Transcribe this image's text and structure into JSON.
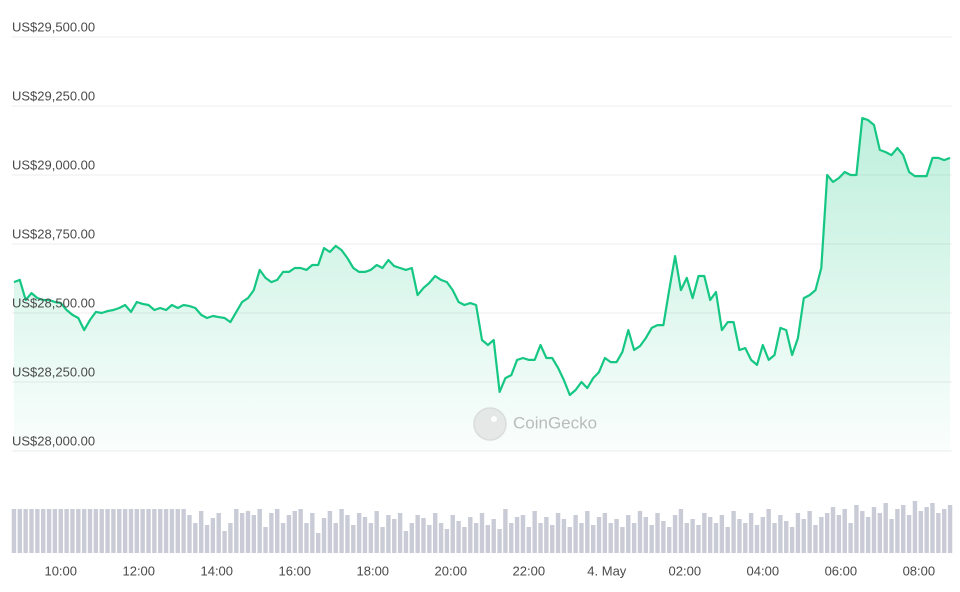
{
  "chart_data": {
    "type": "line",
    "watermark": "CoinGecko",
    "color": "#16c784",
    "grid": true,
    "xlim": [
      8.75,
      32.85
    ],
    "xticks": [
      {
        "value": 10,
        "label": "10:00"
      },
      {
        "value": 12,
        "label": "12:00"
      },
      {
        "value": 14,
        "label": "14:00"
      },
      {
        "value": 16,
        "label": "16:00"
      },
      {
        "value": 18,
        "label": "18:00"
      },
      {
        "value": 20,
        "label": "20:00"
      },
      {
        "value": 22,
        "label": "22:00"
      },
      {
        "value": 24,
        "label": "4. May"
      },
      {
        "value": 26,
        "label": "02:00"
      },
      {
        "value": 28,
        "label": "04:00"
      },
      {
        "value": 30,
        "label": "06:00"
      },
      {
        "value": 32,
        "label": "08:00"
      }
    ],
    "ylim": [
      28000,
      29500
    ],
    "yticks": [
      {
        "value": 28000,
        "label": "US$28,000.00"
      },
      {
        "value": 28250,
        "label": "US$28,250.00"
      },
      {
        "value": 28500,
        "label": "US$28,500.00"
      },
      {
        "value": 28750,
        "label": "US$28,750.00"
      },
      {
        "value": 29000,
        "label": "US$29,000.00"
      },
      {
        "value": 29250,
        "label": "US$29,250.00"
      },
      {
        "value": 29500,
        "label": "US$29,500.00"
      }
    ],
    "x": [
      8.8,
      8.95,
      9.1,
      9.25,
      9.4,
      9.55,
      9.7,
      9.85,
      10,
      10.15,
      10.3,
      10.45,
      10.6,
      10.75,
      10.9,
      11.05,
      11.2,
      11.35,
      11.5,
      11.65,
      11.8,
      11.95,
      12.1,
      12.25,
      12.4,
      12.55,
      12.7,
      12.85,
      13,
      13.15,
      13.3,
      13.45,
      13.6,
      13.75,
      13.9,
      14.05,
      14.2,
      14.35,
      14.5,
      14.65,
      14.8,
      14.95,
      15.1,
      15.25,
      15.4,
      15.55,
      15.7,
      15.85,
      16,
      16.15,
      16.3,
      16.45,
      16.6,
      16.75,
      16.9,
      17.05,
      17.2,
      17.35,
      17.5,
      17.65,
      17.8,
      17.95,
      18.1,
      18.25,
      18.4,
      18.55,
      18.7,
      18.85,
      19,
      19.15,
      19.3,
      19.45,
      19.6,
      19.75,
      19.9,
      20.05,
      20.2,
      20.35,
      20.5,
      20.65,
      20.8,
      20.95,
      21.1,
      21.25,
      21.4,
      21.55,
      21.7,
      21.85,
      22,
      22.15,
      22.3,
      22.45,
      22.6,
      22.75,
      22.9,
      23.05,
      23.2,
      23.35,
      23.5,
      23.65,
      23.8,
      23.95,
      24.1,
      24.25,
      24.4,
      24.55,
      24.7,
      24.85,
      25,
      25.15,
      25.3,
      25.45,
      25.6,
      25.75,
      25.9,
      26.05,
      26.2,
      26.35,
      26.5,
      26.65,
      26.8,
      26.95,
      27.1,
      27.25,
      27.4,
      27.55,
      27.7,
      27.85,
      28,
      28.15,
      28.3,
      28.45,
      28.6,
      28.75,
      28.9,
      29.05,
      29.2,
      29.35,
      29.5,
      29.65,
      29.8,
      29.95,
      30.1,
      30.25,
      30.4,
      30.55,
      30.7,
      30.85,
      31,
      31.15,
      31.3,
      31.45,
      31.6,
      31.75,
      31.9,
      32.05,
      32.2,
      32.35,
      32.5,
      32.65,
      32.8
    ],
    "values": [
      28612,
      28620,
      28547,
      28572,
      28554,
      28547,
      28547,
      28540,
      28536,
      28511,
      28493,
      28482,
      28438,
      28475,
      28504,
      28500,
      28507,
      28511,
      28518,
      28529,
      28504,
      28540,
      28533,
      28529,
      28511,
      28518,
      28511,
      28529,
      28518,
      28529,
      28525,
      28518,
      28493,
      28482,
      28489,
      28485,
      28482,
      28467,
      28504,
      28540,
      28554,
      28583,
      28656,
      28627,
      28612,
      28620,
      28649,
      28649,
      28663,
      28663,
      28656,
      28674,
      28674,
      28735,
      28721,
      28743,
      28728,
      28699,
      28663,
      28649,
      28649,
      28656,
      28674,
      28663,
      28692,
      28670,
      28663,
      28656,
      28663,
      28565,
      28591,
      28609,
      28634,
      28620,
      28612,
      28583,
      28540,
      28529,
      28536,
      28529,
      28402,
      28384,
      28402,
      28214,
      28264,
      28275,
      28330,
      28337,
      28330,
      28330,
      28384,
      28337,
      28337,
      28301,
      28257,
      28203,
      28221,
      28250,
      28228,
      28264,
      28286,
      28337,
      28322,
      28322,
      28359,
      28438,
      28366,
      28380,
      28409,
      28446,
      28456,
      28456,
      28583,
      28706,
      28583,
      28627,
      28554,
      28634,
      28634,
      28547,
      28576,
      28438,
      28467,
      28467,
      28366,
      28373,
      28330,
      28312,
      28384,
      28330,
      28348,
      28446,
      28438,
      28348,
      28409,
      28554,
      28565,
      28583,
      28663,
      29000,
      28975,
      28989,
      29011,
      29000,
      29000,
      29206,
      29199,
      29181,
      29091,
      29083,
      29072,
      29098,
      29072,
      29011,
      28996,
      28996,
      28996,
      29062,
      29062,
      29054,
      29062
    ],
    "volume_color": "#c9ccd6",
    "volume_lim": [
      0,
      50
    ],
    "volume": [
      44,
      44,
      44,
      44,
      44,
      44,
      44,
      44,
      44,
      44,
      44,
      44,
      44,
      44,
      44,
      44,
      44,
      44,
      44,
      44,
      44,
      44,
      44,
      44,
      44,
      44,
      44,
      44,
      44,
      44,
      38,
      30,
      42,
      28,
      35,
      40,
      22,
      30,
      44,
      40,
      42,
      38,
      44,
      26,
      40,
      44,
      30,
      38,
      42,
      44,
      30,
      40,
      20,
      35,
      42,
      30,
      44,
      38,
      28,
      40,
      36,
      30,
      42,
      26,
      38,
      34,
      40,
      22,
      30,
      38,
      35,
      28,
      40,
      30,
      24,
      38,
      32,
      26,
      36,
      30,
      40,
      28,
      34,
      24,
      44,
      30,
      36,
      38,
      26,
      42,
      30,
      36,
      28,
      40,
      34,
      26,
      38,
      30,
      42,
      28,
      36,
      40,
      30,
      34,
      26,
      38,
      30,
      42,
      36,
      28,
      40,
      32,
      26,
      38,
      44,
      30,
      34,
      28,
      40,
      36,
      30,
      38,
      26,
      42,
      34,
      30,
      40,
      28,
      36,
      44,
      30,
      38,
      32,
      26,
      40,
      34,
      42,
      28,
      36,
      40,
      46,
      38,
      44,
      30,
      48,
      42,
      36,
      46,
      40,
      50,
      34,
      44,
      48,
      38,
      52,
      42,
      46,
      50,
      40,
      44,
      48
    ]
  }
}
